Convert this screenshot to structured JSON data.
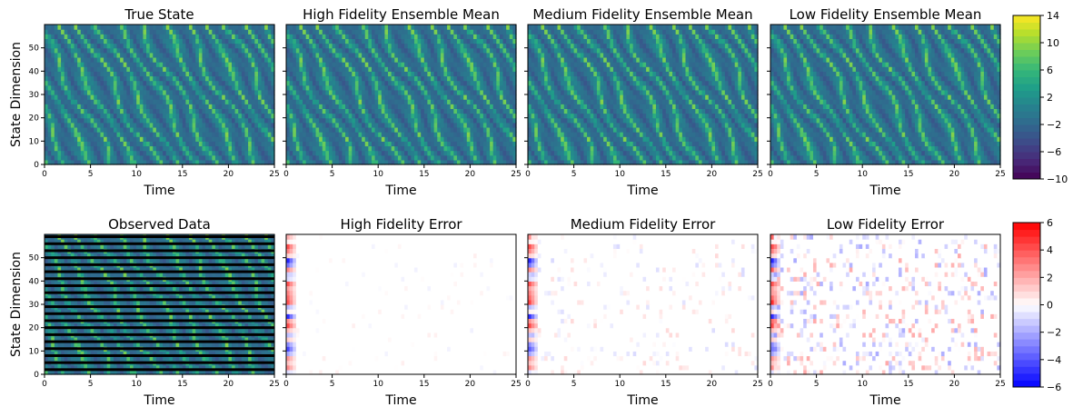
{
  "chart_data": {
    "type": "heatmap",
    "panels": [
      {
        "title": "True State",
        "xlabel": "Time",
        "ylabel": "State Dimension",
        "kind": "state",
        "xlim": [
          0,
          25
        ],
        "ylim": [
          0,
          60
        ]
      },
      {
        "title": "High Fidelity Ensemble Mean",
        "xlabel": "Time",
        "ylabel": "",
        "kind": "state",
        "xlim": [
          0,
          25
        ],
        "ylim": [
          0,
          60
        ]
      },
      {
        "title": "Medium Fidelity Ensemble Mean",
        "xlabel": "Time",
        "ylabel": "",
        "kind": "state",
        "xlim": [
          0,
          25
        ],
        "ylim": [
          0,
          60
        ]
      },
      {
        "title": "Low Fidelity Ensemble Mean",
        "xlabel": "Time",
        "ylabel": "",
        "kind": "state",
        "xlim": [
          0,
          25
        ],
        "ylim": [
          0,
          60
        ]
      },
      {
        "title": "Observed Data",
        "xlabel": "Time",
        "ylabel": "State Dimension",
        "kind": "observed",
        "xlim": [
          0,
          25
        ],
        "ylim": [
          0,
          60
        ]
      },
      {
        "title": "High Fidelity Error",
        "xlabel": "Time",
        "ylabel": "",
        "kind": "error",
        "error_level": 0.15,
        "xlim": [
          0,
          25
        ],
        "ylim": [
          0,
          60
        ]
      },
      {
        "title": "Medium Fidelity Error",
        "xlabel": "Time",
        "ylabel": "",
        "kind": "error",
        "error_level": 0.35,
        "xlim": [
          0,
          25
        ],
        "ylim": [
          0,
          60
        ]
      },
      {
        "title": "Low Fidelity Error",
        "xlabel": "Time",
        "ylabel": "",
        "kind": "error",
        "error_level": 0.8,
        "xlim": [
          0,
          25
        ],
        "ylim": [
          0,
          60
        ]
      }
    ],
    "x_ticks": [
      "0",
      "5",
      "10",
      "15",
      "20",
      "25"
    ],
    "y_ticks": [
      "0",
      "10",
      "20",
      "30",
      "40",
      "50"
    ],
    "colorbars": [
      {
        "colormap": "viridis",
        "range": [
          -10,
          14
        ],
        "ticks": [
          "14",
          "10",
          "6",
          "2",
          "−2",
          "−6",
          "−10"
        ]
      },
      {
        "colormap": "bwr",
        "range": [
          -6,
          6
        ],
        "ticks": [
          "6",
          "4",
          "2",
          "0",
          "−2",
          "−4",
          "−6"
        ]
      }
    ]
  }
}
